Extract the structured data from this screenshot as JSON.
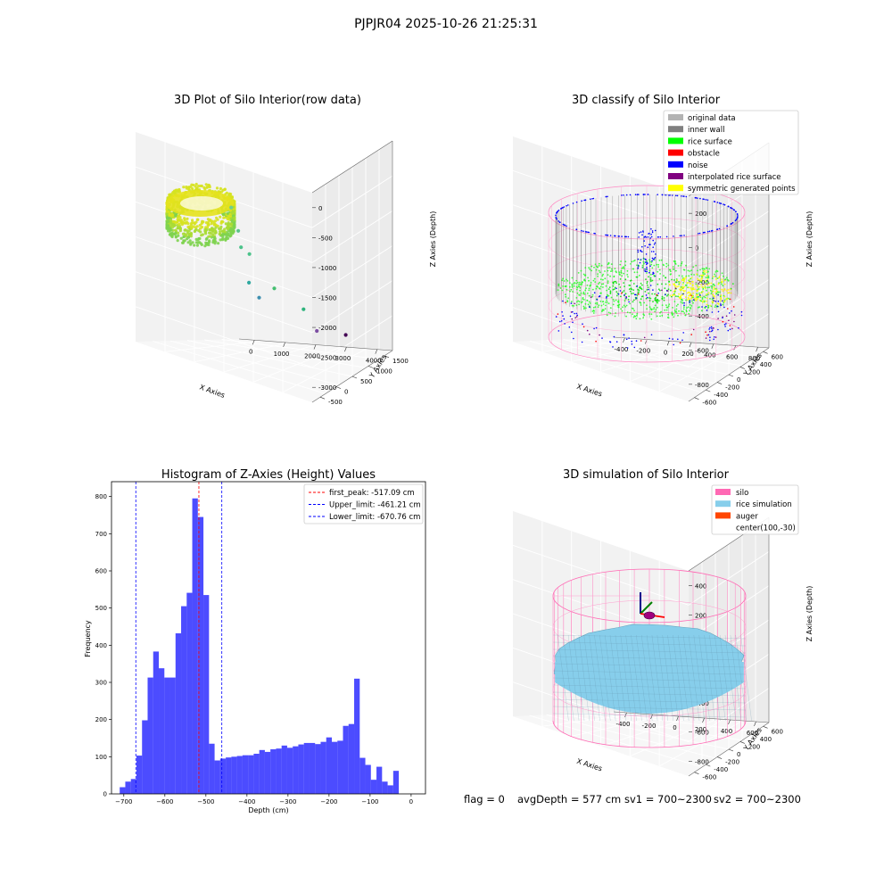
{
  "suptitle": "PJPJR04 2025-10-26 21:25:31",
  "status": {
    "flag": "flag = 0",
    "avg_depth": "avgDepth = 577 cm",
    "sv1": "sv1 = 700~2300",
    "sv2": "sv2 = 700~2300"
  },
  "chart_data": [
    {
      "type": "scatter",
      "title": "3D Plot of Silo Interior(row data)",
      "xlabel": "X Axies",
      "ylabel": "Y Axies",
      "zlabel": "Z Axies (Depth)",
      "x_ticks": [
        "0",
        "1000",
        "2000",
        "3000",
        "4000"
      ],
      "y_ticks": [
        "-500",
        "0",
        "500",
        "1000",
        "1500"
      ],
      "z_ticks": [
        "0",
        "-500",
        "-1000",
        "-1500",
        "-2000",
        "-2500",
        "-3000"
      ],
      "outlier_points": [
        {
          "x": 500,
          "y": 300,
          "z": -900,
          "color": "#6fcf8f"
        },
        {
          "x": 600,
          "y": 200,
          "z": -1300,
          "color": "#5cc48a"
        },
        {
          "x": 800,
          "y": 300,
          "z": -1550,
          "color": "#4cc38a"
        },
        {
          "x": 1000,
          "y": 250,
          "z": -1650,
          "color": "#4cc38a"
        },
        {
          "x": 700,
          "y": 0,
          "z": -2200,
          "color": "#2fa8a0"
        },
        {
          "x": 900,
          "y": -100,
          "z": -2450,
          "color": "#3e8fb0"
        },
        {
          "x": 1600,
          "y": 100,
          "z": -2200,
          "color": "#44bf70"
        },
        {
          "x": 2400,
          "y": 0,
          "z": -2500,
          "color": "#2eb37c"
        },
        {
          "x": 2600,
          "y": -200,
          "z": -2900,
          "color": "#7c4ea2"
        },
        {
          "x": 3200,
          "y": -500,
          "z": -3000,
          "color": "#440154"
        }
      ]
    },
    {
      "type": "scatter",
      "title": "3D classify of Silo Interior",
      "xlabel": "X Axies",
      "ylabel": "Y Axies",
      "zlabel": "Z Axies (Depth)",
      "x_ticks": [
        "-400",
        "-200",
        "0",
        "200",
        "400",
        "600",
        "800"
      ],
      "y_ticks": [
        "-600",
        "-400",
        "-200",
        "0",
        "200",
        "400",
        "600"
      ],
      "z_ticks": [
        "200",
        "0",
        "-200",
        "-400",
        "-600",
        "-800"
      ],
      "legend": [
        {
          "label": "original data",
          "color": "#b3b3b3"
        },
        {
          "label": "inner wall",
          "color": "#808080"
        },
        {
          "label": "rice surface",
          "color": "#00ff00"
        },
        {
          "label": "obstacle",
          "color": "#ff0000"
        },
        {
          "label": "noise",
          "color": "#0000ff"
        },
        {
          "label": "interpolated rice surface",
          "color": "#800080"
        },
        {
          "label": "symmetric generated points",
          "color": "#ffff00"
        }
      ],
      "legend_position": "top-right"
    },
    {
      "type": "bar",
      "title": "Histogram of Z-Axies (Height) Values",
      "xlabel": "Depth (cm)",
      "ylabel": "Frequency",
      "xlim": [
        -730,
        35
      ],
      "ylim": [
        0,
        840
      ],
      "x_ticks": [
        -700,
        -600,
        -500,
        -400,
        -300,
        -200,
        -100,
        0
      ],
      "y_ticks": [
        0,
        100,
        200,
        300,
        400,
        500,
        600,
        700,
        800
      ],
      "bin_start": -710,
      "bin_width": 13.6,
      "values": [
        18,
        33,
        40,
        103,
        198,
        313,
        383,
        338,
        313,
        313,
        432,
        505,
        541,
        795,
        745,
        535,
        135,
        90,
        95,
        98,
        100,
        102,
        104,
        104,
        108,
        118,
        113,
        120,
        122,
        130,
        124,
        128,
        133,
        137,
        137,
        134,
        140,
        152,
        140,
        143,
        183,
        188,
        310,
        97,
        78,
        38,
        73,
        33,
        23,
        62
      ],
      "bar_color": "#0000ff",
      "lines": [
        {
          "label": "first_peak: -517.09 cm",
          "x": -517.09,
          "color": "#ff0000"
        },
        {
          "label": "Upper_limit: -461.21 cm",
          "x": -461.21,
          "color": "#0000ff"
        },
        {
          "label": "Lower_limit: -670.76 cm",
          "x": -670.76,
          "color": "#0000ff"
        }
      ],
      "legend_position": "top-right"
    },
    {
      "type": "scatter",
      "title": "3D simulation of Silo Interior",
      "xlabel": "X Axies",
      "ylabel": "Y Axies",
      "zlabel": "Z Axies (Depth)",
      "x_ticks": [
        "-400",
        "-200",
        "0",
        "200",
        "400",
        "600"
      ],
      "y_ticks": [
        "-600",
        "-400",
        "-200",
        "0",
        "200",
        "400",
        "600"
      ],
      "z_ticks": [
        "400",
        "200",
        "0",
        "-200",
        "-400",
        "-600",
        "-800"
      ],
      "legend": [
        {
          "label": "silo",
          "color": "#ff69b4"
        },
        {
          "label": "rice simulation",
          "color": "#87ceeb"
        },
        {
          "label": "auger",
          "color": "#ff4500"
        },
        {
          "label": "center(100,-30)",
          "color": ""
        }
      ],
      "legend_position": "top-right"
    }
  ]
}
